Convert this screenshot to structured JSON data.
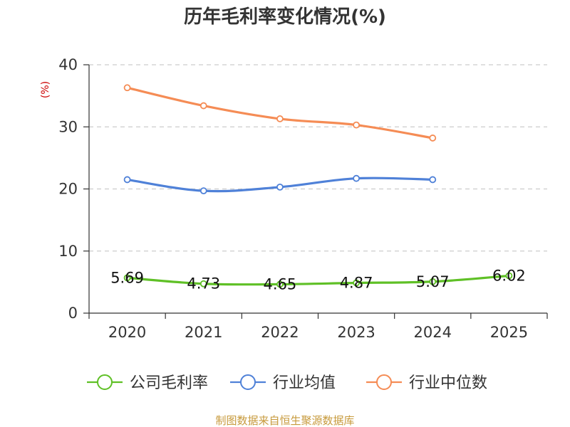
{
  "chart_data": {
    "type": "line",
    "title": "历年毛利率变化情况(%)",
    "ylabel": "(%)",
    "xlabel": "",
    "categories": [
      "2020",
      "2021",
      "2022",
      "2023",
      "2024",
      "2025"
    ],
    "ylim": [
      0,
      40
    ],
    "yticks": [
      0,
      10,
      20,
      30,
      40
    ],
    "grid": true,
    "legend_position": "bottom",
    "series": [
      {
        "name": "公司毛利率",
        "color": "#5fc026",
        "values": [
          5.69,
          4.73,
          4.65,
          4.87,
          5.07,
          6.02
        ],
        "labels": [
          "5.69",
          "4.73",
          "4.65",
          "4.87",
          "5.07",
          "6.02"
        ]
      },
      {
        "name": "行业均值",
        "color": "#4f81d8",
        "values": [
          21.5,
          19.7,
          20.3,
          21.7,
          21.5,
          null
        ]
      },
      {
        "name": "行业中位数",
        "color": "#f58c55",
        "values": [
          36.3,
          33.4,
          31.3,
          30.3,
          28.2,
          null
        ]
      }
    ],
    "source": "制图数据来自恒生聚源数据库"
  },
  "colors": {
    "axis": "#333333",
    "grid": "#cccccc",
    "unit": "#cc0000",
    "source": "#c79a3c"
  }
}
